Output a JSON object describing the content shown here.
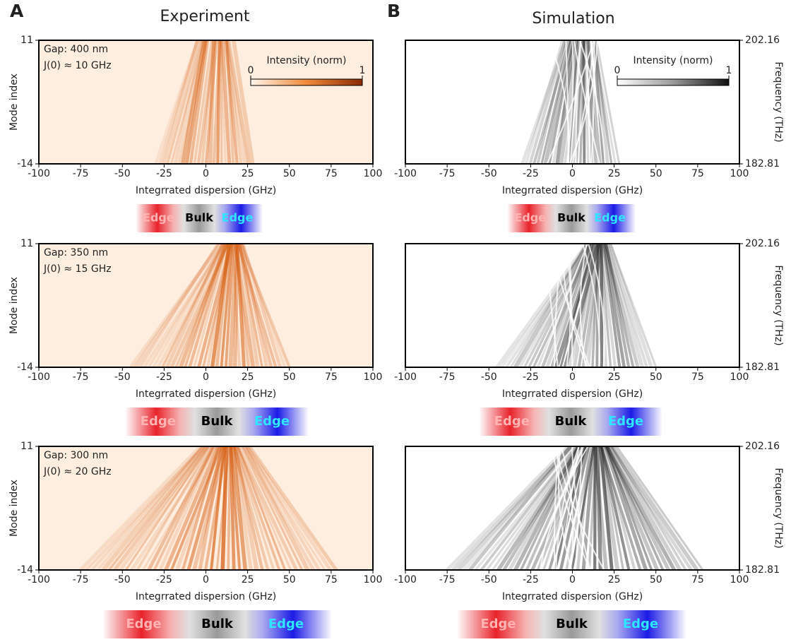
{
  "figure": {
    "panels": [
      {
        "label": "A",
        "title": "Experiment"
      },
      {
        "label": "B",
        "title": "Simulation"
      }
    ]
  },
  "chart_data": [
    {
      "type": "heatmap",
      "colormap": "oranges",
      "annotations": [
        "Gap: 400 nm",
        "J(0) ≈ 10 GHz"
      ],
      "colorbar": {
        "label": "Intensity (norm)",
        "ticks": [
          0,
          1
        ]
      },
      "xlabel": "Integrrated dispersion (GHz)",
      "ylabel": "Mode index",
      "xlim": [
        -100,
        100
      ],
      "xticks": [
        -100,
        -75,
        -50,
        -25,
        0,
        25,
        50,
        75,
        100
      ],
      "ylim": [
        -14,
        11
      ],
      "yticks": [
        -14,
        11
      ],
      "legend_bar": [
        "Edge",
        "Bulk",
        "Edge"
      ]
    },
    {
      "type": "heatmap",
      "colormap": "greys",
      "colorbar": {
        "label": "Intensity (norm)",
        "ticks": [
          0,
          1
        ]
      },
      "xlabel": "Integrrated dispersion (GHz)",
      "y2label": "Frequency (THz)",
      "xlim": [
        -100,
        100
      ],
      "xticks": [
        -100,
        -75,
        -50,
        -25,
        0,
        25,
        50,
        75,
        100
      ],
      "y2lim": [
        182.81,
        202.16
      ],
      "y2ticks": [
        182.81,
        202.16
      ],
      "legend_bar": [
        "Edge",
        "Bulk",
        "Edge"
      ]
    },
    {
      "type": "heatmap",
      "colormap": "oranges",
      "annotations": [
        "Gap: 350 nm",
        "J(0) ≈ 15 GHz"
      ],
      "xlabel": "Integrrated dispersion (GHz)",
      "ylabel": "Mode index",
      "xlim": [
        -100,
        100
      ],
      "xticks": [
        -100,
        -75,
        -50,
        -25,
        0,
        25,
        50,
        75,
        100
      ],
      "ylim": [
        -14,
        11
      ],
      "yticks": [
        -14,
        11
      ],
      "legend_bar": [
        "Edge",
        "Bulk",
        "Edge"
      ]
    },
    {
      "type": "heatmap",
      "colormap": "greys",
      "xlabel": "Integrrated dispersion (GHz)",
      "y2label": "Frequency (THz)",
      "xlim": [
        -100,
        100
      ],
      "xticks": [
        -100,
        -75,
        -50,
        -25,
        0,
        25,
        50,
        75,
        100
      ],
      "y2lim": [
        182.81,
        202.16
      ],
      "y2ticks": [
        182.81,
        202.16
      ],
      "legend_bar": [
        "Edge",
        "Bulk",
        "Edge"
      ]
    },
    {
      "type": "heatmap",
      "colormap": "oranges",
      "annotations": [
        "Gap: 300 nm",
        "J(0) ≈ 20 GHz"
      ],
      "xlabel": "Integrrated dispersion (GHz)",
      "ylabel": "Mode index",
      "xlim": [
        -100,
        100
      ],
      "xticks": [
        -100,
        -75,
        -50,
        -25,
        0,
        25,
        50,
        75,
        100
      ],
      "ylim": [
        -14,
        11
      ],
      "yticks": [
        -14,
        11
      ],
      "legend_bar": [
        "Edge",
        "Bulk",
        "Edge"
      ]
    },
    {
      "type": "heatmap",
      "colormap": "greys",
      "xlabel": "Integrrated dispersion (GHz)",
      "y2label": "Frequency (THz)",
      "xlim": [
        -100,
        100
      ],
      "xticks": [
        -100,
        -75,
        -50,
        -25,
        0,
        25,
        50,
        75,
        100
      ],
      "y2lim": [
        182.81,
        202.16
      ],
      "y2ticks": [
        182.81,
        202.16
      ],
      "legend_bar": [
        "Edge",
        "Bulk",
        "Edge"
      ]
    }
  ]
}
